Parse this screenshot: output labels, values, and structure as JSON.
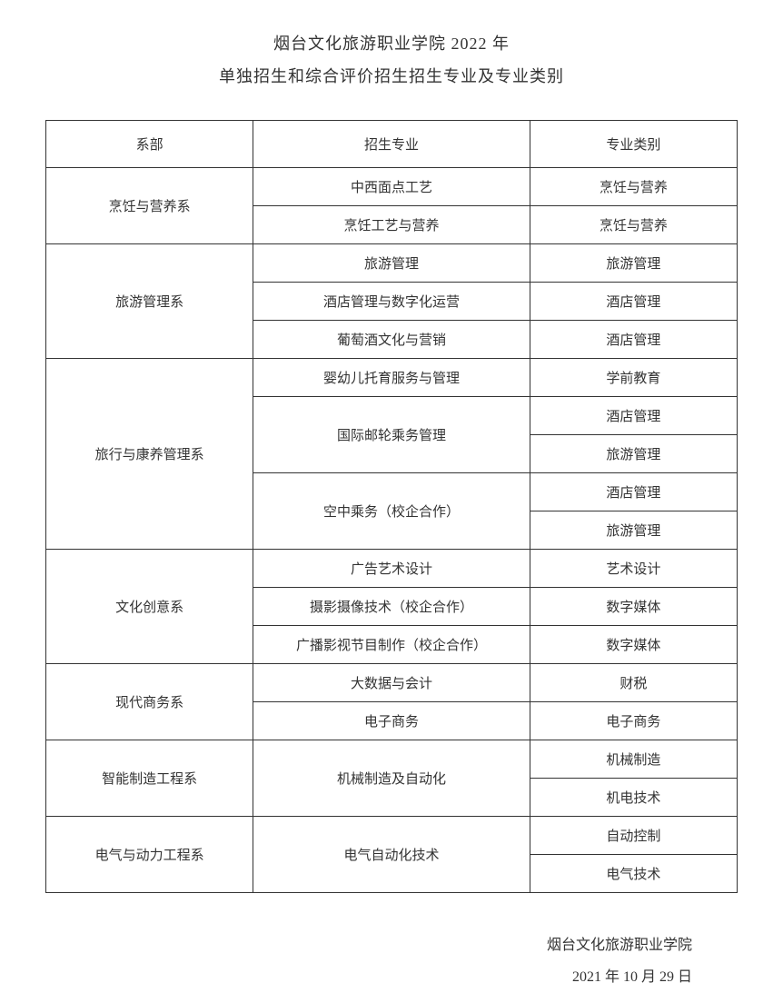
{
  "title": {
    "line1": "烟台文化旅游职业学院 2022 年",
    "line2": "单独招生和综合评价招生招生专业及专业类别"
  },
  "table": {
    "headers": {
      "dept": "系部",
      "major": "招生专业",
      "category": "专业类别"
    },
    "rows": [
      {
        "dept": "烹饪与营养系",
        "deptRowspan": 2,
        "major": "中西面点工艺",
        "majorRowspan": 1,
        "category": "烹饪与营养"
      },
      {
        "dept": null,
        "major": "烹饪工艺与营养",
        "majorRowspan": 1,
        "category": "烹饪与营养"
      },
      {
        "dept": "旅游管理系",
        "deptRowspan": 3,
        "major": "旅游管理",
        "majorRowspan": 1,
        "category": "旅游管理"
      },
      {
        "dept": null,
        "major": "酒店管理与数字化运营",
        "majorRowspan": 1,
        "category": "酒店管理"
      },
      {
        "dept": null,
        "major": "葡萄酒文化与营销",
        "majorRowspan": 1,
        "category": "酒店管理"
      },
      {
        "dept": "旅行与康养管理系",
        "deptRowspan": 5,
        "major": "婴幼儿托育服务与管理",
        "majorRowspan": 1,
        "category": "学前教育"
      },
      {
        "dept": null,
        "major": "国际邮轮乘务管理",
        "majorRowspan": 2,
        "category": "酒店管理"
      },
      {
        "dept": null,
        "major": null,
        "category": "旅游管理"
      },
      {
        "dept": null,
        "major": "空中乘务（校企合作）",
        "majorRowspan": 2,
        "category": "酒店管理"
      },
      {
        "dept": null,
        "major": null,
        "category": "旅游管理"
      },
      {
        "dept": "文化创意系",
        "deptRowspan": 3,
        "major": "广告艺术设计",
        "majorRowspan": 1,
        "category": "艺术设计"
      },
      {
        "dept": null,
        "major": "摄影摄像技术（校企合作）",
        "majorRowspan": 1,
        "category": "数字媒体"
      },
      {
        "dept": null,
        "major": "广播影视节目制作（校企合作）",
        "majorRowspan": 1,
        "category": "数字媒体"
      },
      {
        "dept": "现代商务系",
        "deptRowspan": 2,
        "major": "大数据与会计",
        "majorRowspan": 1,
        "category": "财税"
      },
      {
        "dept": null,
        "major": "电子商务",
        "majorRowspan": 1,
        "category": "电子商务"
      },
      {
        "dept": "智能制造工程系",
        "deptRowspan": 2,
        "major": "机械制造及自动化",
        "majorRowspan": 2,
        "category": "机械制造"
      },
      {
        "dept": null,
        "major": null,
        "category": "机电技术"
      },
      {
        "dept": "电气与动力工程系",
        "deptRowspan": 2,
        "major": "电气自动化技术",
        "majorRowspan": 2,
        "category": "自动控制"
      },
      {
        "dept": null,
        "major": null,
        "category": "电气技术"
      }
    ]
  },
  "footer": {
    "org": "烟台文化旅游职业学院",
    "date": "2021 年 10 月 29 日"
  }
}
